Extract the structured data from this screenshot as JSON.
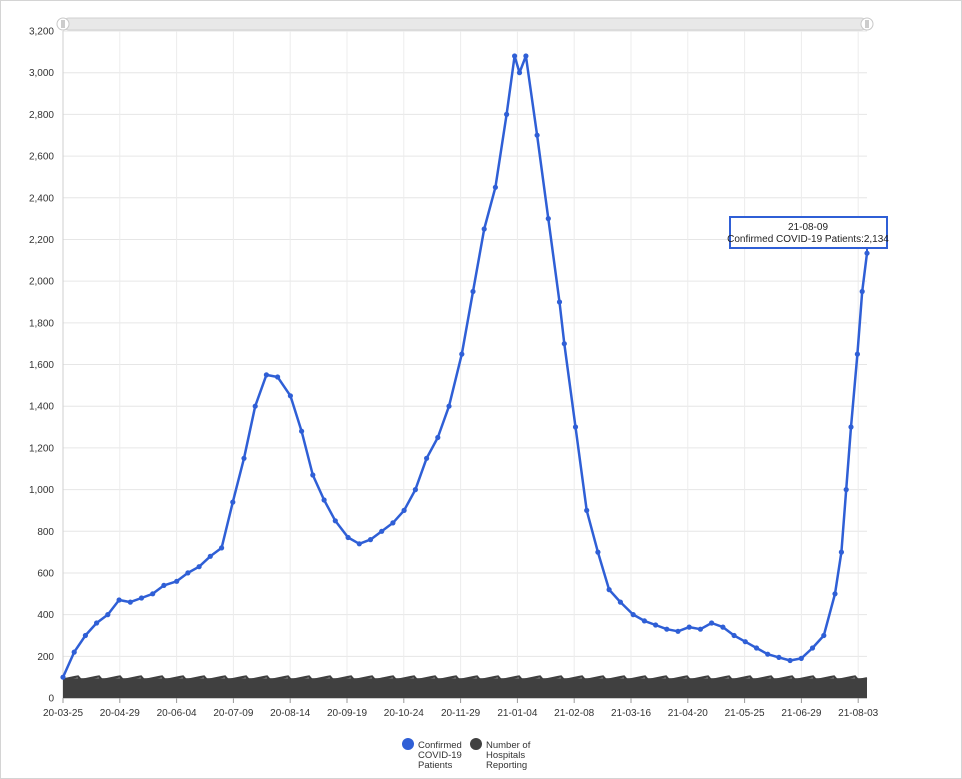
{
  "chart_data": {
    "type": "line",
    "title": "",
    "xlabel": "",
    "ylabel": "",
    "x_tick_labels": [
      "20-03-25",
      "20-04-29",
      "20-06-04",
      "20-07-09",
      "20-08-14",
      "20-09-19",
      "20-10-24",
      "20-11-29",
      "21-01-04",
      "21-02-08",
      "21-03-16",
      "21-04-20",
      "21-05-25",
      "21-06-29",
      "21-08-03"
    ],
    "ylim": [
      0,
      3200
    ],
    "y_ticks": [
      0,
      200,
      400,
      600,
      800,
      1000,
      1200,
      1400,
      1600,
      1800,
      2000,
      2200,
      2400,
      2600,
      2800,
      3000,
      3200
    ],
    "y_tick_labels": [
      "0",
      "200",
      "400",
      "600",
      "800",
      "1,000",
      "1,200",
      "1,400",
      "1,600",
      "1,800",
      "2,000",
      "2,200",
      "2,400",
      "2,600",
      "2,800",
      "3,000",
      "3,200"
    ],
    "grid": true,
    "legend_position": "bottom",
    "series": [
      {
        "name": "Confirmed COVID-19 Patients",
        "color": "#2f5fd6",
        "points": [
          [
            "2020-03-25",
            100
          ],
          [
            "2020-04-01",
            220
          ],
          [
            "2020-04-08",
            300
          ],
          [
            "2020-04-15",
            360
          ],
          [
            "2020-04-22",
            400
          ],
          [
            "2020-04-29",
            470
          ],
          [
            "2020-05-06",
            460
          ],
          [
            "2020-05-13",
            480
          ],
          [
            "2020-05-20",
            500
          ],
          [
            "2020-05-27",
            540
          ],
          [
            "2020-06-04",
            560
          ],
          [
            "2020-06-11",
            600
          ],
          [
            "2020-06-18",
            630
          ],
          [
            "2020-06-25",
            680
          ],
          [
            "2020-07-02",
            720
          ],
          [
            "2020-07-09",
            940
          ],
          [
            "2020-07-16",
            1150
          ],
          [
            "2020-07-23",
            1400
          ],
          [
            "2020-07-30",
            1550
          ],
          [
            "2020-08-06",
            1540
          ],
          [
            "2020-08-14",
            1450
          ],
          [
            "2020-08-21",
            1280
          ],
          [
            "2020-08-28",
            1070
          ],
          [
            "2020-09-04",
            950
          ],
          [
            "2020-09-11",
            850
          ],
          [
            "2020-09-19",
            770
          ],
          [
            "2020-09-26",
            740
          ],
          [
            "2020-10-03",
            760
          ],
          [
            "2020-10-10",
            800
          ],
          [
            "2020-10-17",
            840
          ],
          [
            "2020-10-24",
            900
          ],
          [
            "2020-10-31",
            1000
          ],
          [
            "2020-11-07",
            1150
          ],
          [
            "2020-11-14",
            1250
          ],
          [
            "2020-11-21",
            1400
          ],
          [
            "2020-11-29",
            1650
          ],
          [
            "2020-12-06",
            1950
          ],
          [
            "2020-12-13",
            2250
          ],
          [
            "2020-12-20",
            2450
          ],
          [
            "2020-12-27",
            2800
          ],
          [
            "2021-01-01",
            3080
          ],
          [
            "2021-01-04",
            3000
          ],
          [
            "2021-01-08",
            3080
          ],
          [
            "2021-01-15",
            2700
          ],
          [
            "2021-01-22",
            2300
          ],
          [
            "2021-01-29",
            1900
          ],
          [
            "2021-02-01",
            1700
          ],
          [
            "2021-02-08",
            1300
          ],
          [
            "2021-02-15",
            900
          ],
          [
            "2021-02-22",
            700
          ],
          [
            "2021-03-01",
            520
          ],
          [
            "2021-03-08",
            460
          ],
          [
            "2021-03-16",
            400
          ],
          [
            "2021-03-23",
            370
          ],
          [
            "2021-03-30",
            350
          ],
          [
            "2021-04-06",
            330
          ],
          [
            "2021-04-13",
            320
          ],
          [
            "2021-04-20",
            340
          ],
          [
            "2021-04-27",
            330
          ],
          [
            "2021-05-04",
            360
          ],
          [
            "2021-05-11",
            340
          ],
          [
            "2021-05-18",
            300
          ],
          [
            "2021-05-25",
            270
          ],
          [
            "2021-06-01",
            240
          ],
          [
            "2021-06-08",
            210
          ],
          [
            "2021-06-15",
            195
          ],
          [
            "2021-06-22",
            180
          ],
          [
            "2021-06-29",
            190
          ],
          [
            "2021-07-06",
            240
          ],
          [
            "2021-07-13",
            300
          ],
          [
            "2021-07-20",
            500
          ],
          [
            "2021-07-24",
            700
          ],
          [
            "2021-07-27",
            1000
          ],
          [
            "2021-07-30",
            1300
          ],
          [
            "2021-08-03",
            1650
          ],
          [
            "2021-08-06",
            1950
          ],
          [
            "2021-08-09",
            2134
          ]
        ]
      },
      {
        "name": "Number of Hospitals Reporting",
        "color": "#404040",
        "points": [
          [
            "2020-03-25",
            95
          ],
          [
            "2021-08-09",
            95
          ]
        ]
      }
    ],
    "tooltip": {
      "date": "21-08-09",
      "label": "Confirmed COVID-19 Patients:2,134"
    },
    "legend": [
      {
        "label": "Confirmed COVID-19 Patients",
        "lines": [
          "Confirmed",
          "COVID-19",
          "Patients"
        ],
        "color": "#2f5fd6"
      },
      {
        "label": "Number of Hospitals Reporting",
        "lines": [
          "Number of",
          "Hospitals",
          "Reporting"
        ],
        "color": "#404040"
      }
    ]
  }
}
